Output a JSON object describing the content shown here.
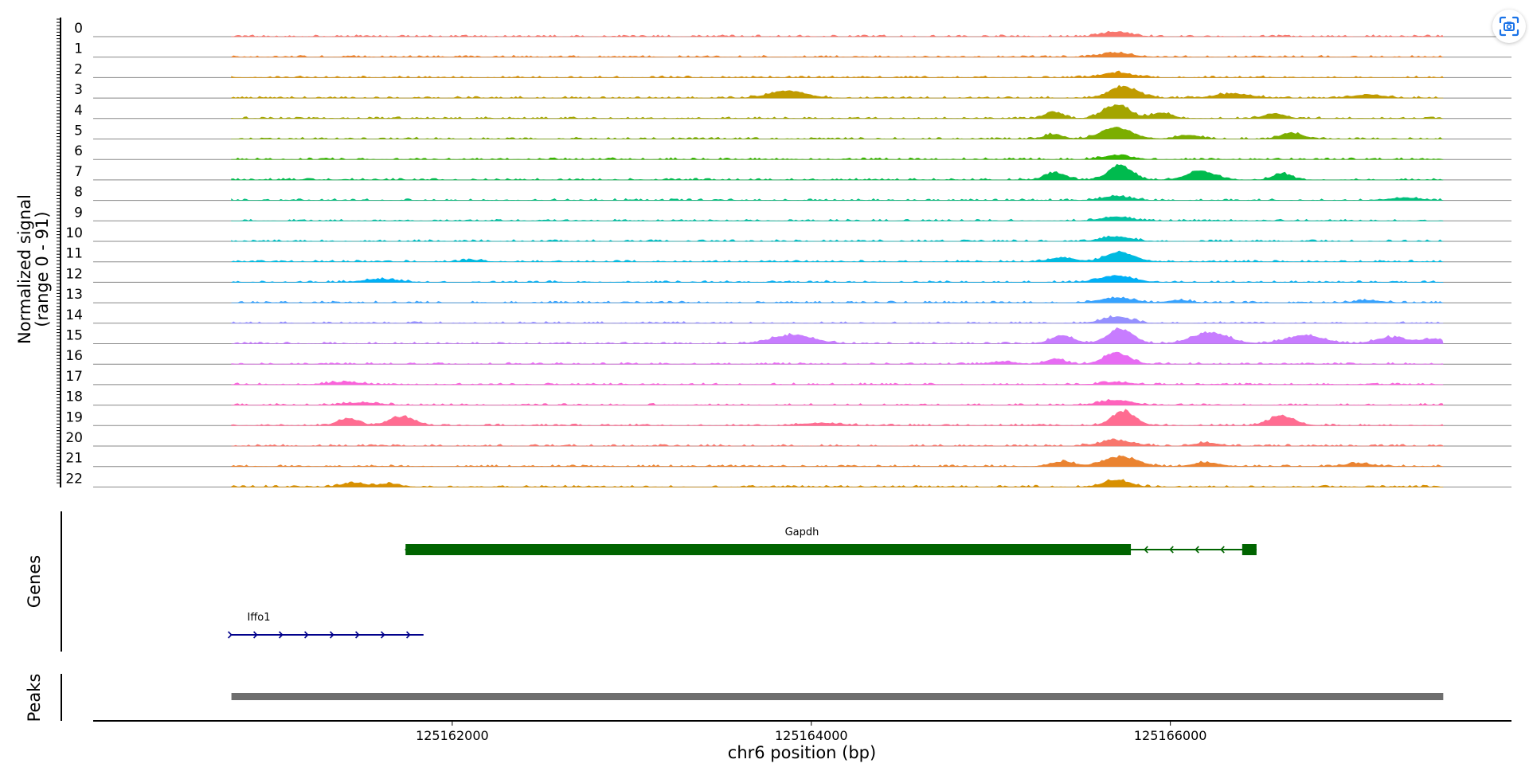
{
  "chart_data": {
    "type": "area",
    "subplots": [
      "coverage",
      "genes",
      "peaks"
    ],
    "x_axis": {
      "label": "chr6 position (bp)",
      "range": [
        125160000,
        125167900
      ],
      "data_range": [
        125160770,
        125167520
      ],
      "ticks": [
        125162000,
        125164000,
        125166000
      ],
      "tick_labels": [
        "125162000",
        "125164000",
        "125166000"
      ]
    },
    "coverage": {
      "ylabel_line1": "Normalized signal",
      "ylabel_line2": "(range 0 - 91)",
      "max": 91,
      "track_labels": [
        "0",
        "1",
        "2",
        "3",
        "4",
        "5",
        "6",
        "7",
        "8",
        "9",
        "10",
        "11",
        "12",
        "13",
        "14",
        "15",
        "16",
        "17",
        "18",
        "19",
        "20",
        "21",
        "22"
      ],
      "colors": [
        "#f8766d",
        "#ea8331",
        "#d89000",
        "#c09b00",
        "#a3a500",
        "#7cae00",
        "#39b600",
        "#00bb4e",
        "#00bf7d",
        "#00c1a3",
        "#00bfc4",
        "#00bae0",
        "#00b0f6",
        "#35a2ff",
        "#9590ff",
        "#c77cff",
        "#e76bf3",
        "#fa62db",
        "#ff62bc",
        "#ff6c91",
        "#f8766d",
        "#ea8331",
        "#d89000"
      ],
      "peaks": [
        [
          [
            125165700,
            6,
            110
          ]
        ],
        [
          [
            125165700,
            5,
            120
          ]
        ],
        [
          [
            125165700,
            6,
            120
          ]
        ],
        [
          [
            125163870,
            9,
            140
          ],
          [
            125165740,
            14,
            110
          ],
          [
            125166350,
            5,
            140
          ],
          [
            125167100,
            4,
            120
          ]
        ],
        [
          [
            125165700,
            17,
            100
          ],
          [
            125165350,
            8,
            70
          ],
          [
            125165950,
            7,
            80
          ],
          [
            125166580,
            6,
            80
          ]
        ],
        [
          [
            125165700,
            14,
            120
          ],
          [
            125165350,
            6,
            70
          ],
          [
            125166100,
            5,
            90
          ],
          [
            125166680,
            7,
            90
          ]
        ],
        [
          [
            125165700,
            5,
            110
          ]
        ],
        [
          [
            125165720,
            18,
            90
          ],
          [
            125165360,
            9,
            80
          ],
          [
            125166170,
            11,
            110
          ],
          [
            125166620,
            8,
            70
          ]
        ],
        [
          [
            125165700,
            5,
            110
          ],
          [
            125167300,
            3,
            120
          ]
        ],
        [
          [
            125165700,
            5,
            110
          ]
        ],
        [
          [
            125165700,
            6,
            110
          ]
        ],
        [
          [
            125165720,
            12,
            110
          ],
          [
            125165400,
            5,
            100
          ],
          [
            125162100,
            2,
            90
          ]
        ],
        [
          [
            125165700,
            8,
            130
          ],
          [
            125161600,
            4,
            130
          ]
        ],
        [
          [
            125165700,
            6,
            130
          ],
          [
            125166050,
            3,
            90
          ],
          [
            125167100,
            3,
            100
          ]
        ],
        [
          [
            125165700,
            8,
            110
          ]
        ],
        [
          [
            125163900,
            11,
            160
          ],
          [
            125165720,
            18,
            100
          ],
          [
            125165400,
            10,
            90
          ],
          [
            125166220,
            14,
            140
          ],
          [
            125166750,
            10,
            150
          ],
          [
            125167230,
            8,
            120
          ],
          [
            125167470,
            6,
            100
          ]
        ],
        [
          [
            125165700,
            14,
            100
          ],
          [
            125165360,
            7,
            70
          ],
          [
            125165070,
            3,
            90
          ]
        ],
        [
          [
            125165700,
            3,
            110
          ],
          [
            125161400,
            3,
            130
          ]
        ],
        [
          [
            125165700,
            6,
            120
          ],
          [
            125161500,
            3,
            130
          ]
        ],
        [
          [
            125165740,
            18,
            90
          ],
          [
            125161420,
            9,
            80
          ],
          [
            125161720,
            11,
            100
          ],
          [
            125166620,
            12,
            100
          ],
          [
            125164050,
            3,
            150
          ]
        ],
        [
          [
            125165700,
            7,
            130
          ],
          [
            125166200,
            4,
            90
          ]
        ],
        [
          [
            125165720,
            12,
            130
          ],
          [
            125165400,
            6,
            90
          ],
          [
            125166200,
            5,
            100
          ],
          [
            125167050,
            4,
            100
          ]
        ],
        [
          [
            125165700,
            9,
            100
          ],
          [
            125161450,
            5,
            90
          ],
          [
            125161650,
            4,
            80
          ]
        ]
      ]
    },
    "genes": {
      "ylabel": "Genes",
      "items": [
        {
          "name": "Gapdh",
          "start": 125161740,
          "end": 125166480,
          "strand": "-",
          "color": "#006400",
          "exons": [
            [
              125161740,
              125165780
            ],
            [
              125166400,
              125166480
            ]
          ]
        },
        {
          "name": "Iffo1",
          "start": 125160770,
          "end": 125161840,
          "strand": "+",
          "color": "#00008b",
          "exons": []
        }
      ]
    },
    "peaks_track": {
      "ylabel": "Peaks",
      "regions": [
        [
          125160770,
          125167520
        ]
      ],
      "color": "#6e6e6e"
    }
  },
  "ui": {
    "screenshot_icon": "screenshot-capture-icon"
  }
}
